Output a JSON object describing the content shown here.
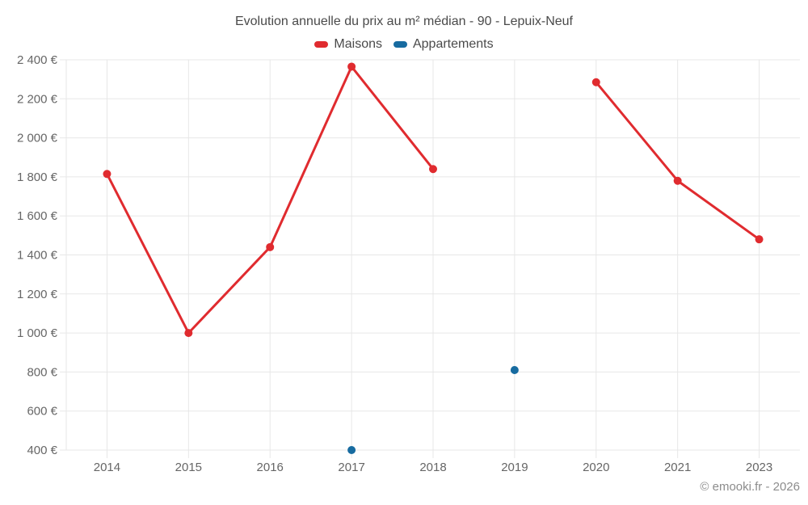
{
  "title": "Evolution annuelle du prix au m² médian - 90 - Lepuix-Neuf",
  "legend": [
    {
      "label": "Maisons",
      "color": "#e02b2f"
    },
    {
      "label": "Appartements",
      "color": "#176ba0"
    }
  ],
  "footer": "© emooki.fr - 2026",
  "chart_data": {
    "type": "line",
    "title": "Evolution annuelle du prix au m² médian - 90 - Lepuix-Neuf",
    "categories": [
      "2014",
      "2015",
      "2016",
      "2017",
      "2018",
      "2019",
      "2020",
      "2021",
      "2023"
    ],
    "series": [
      {
        "name": "Maisons",
        "color": "#e02b2f",
        "values": [
          1815,
          1000,
          1440,
          2365,
          1840,
          null,
          2285,
          1780,
          1480
        ]
      },
      {
        "name": "Appartements",
        "color": "#176ba0",
        "values": [
          null,
          null,
          null,
          400,
          null,
          810,
          null,
          null,
          null
        ]
      }
    ],
    "y_ticks": [
      "2 400 €",
      "2 200 €",
      "2 000 €",
      "1 800 €",
      "1 600 €",
      "1 400 €",
      "1 200 €",
      "1 000 €",
      "800 €",
      "600 €",
      "400 €"
    ],
    "ylim": [
      400,
      2400
    ],
    "y_step": 200,
    "xlabel": "",
    "ylabel": "",
    "grid": true,
    "legend_position": "top"
  }
}
